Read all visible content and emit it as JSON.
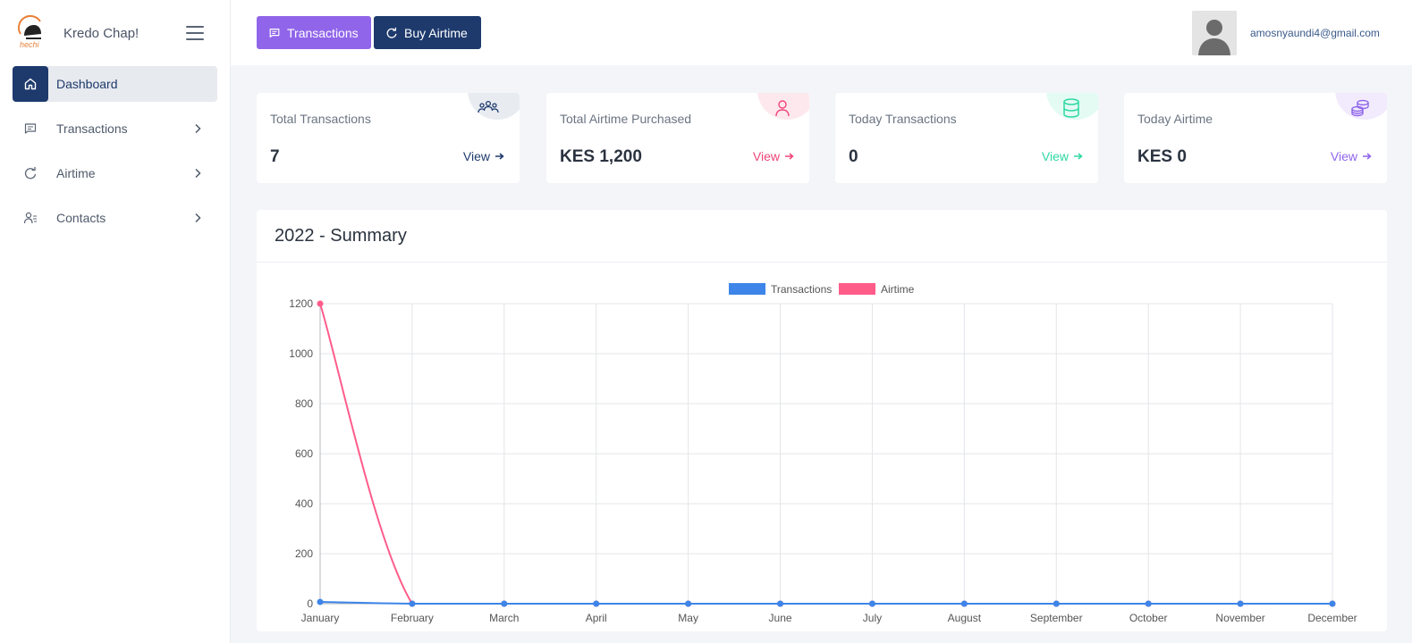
{
  "brand": {
    "name": "Kredo Chap!",
    "logo_icon": "kredo-logo"
  },
  "sidebar": {
    "items": [
      {
        "label": "Dashboard",
        "icon": "home-icon",
        "active": true,
        "chevron": false
      },
      {
        "label": "Transactions",
        "icon": "message-icon",
        "active": false,
        "chevron": true
      },
      {
        "label": "Airtime",
        "icon": "rotate-icon",
        "active": false,
        "chevron": true
      },
      {
        "label": "Contacts",
        "icon": "contacts-icon",
        "active": false,
        "chevron": true
      }
    ]
  },
  "topbar": {
    "transactions_label": "Transactions",
    "buy_airtime_label": "Buy Airtime",
    "user_email": "amosnyaundi4@gmail.com"
  },
  "colors": {
    "primary": "#1e3a6d",
    "accent_purple": "#9065ea",
    "pink": "#f0457a",
    "green": "#2ed8a3",
    "transactions_series": "#3d85e8",
    "airtime_series": "#ff5c8a"
  },
  "cards": [
    {
      "title": "Total Transactions",
      "value": "7",
      "link": "View",
      "icon": "users-icon",
      "color": "#1e3a6d",
      "badge": "#e8ecf1"
    },
    {
      "title": "Total Airtime Purchased",
      "value": "KES 1,200",
      "link": "View",
      "icon": "user-icon",
      "color": "#f0457a",
      "badge": "#fde8ee"
    },
    {
      "title": "Today Transactions",
      "value": "0",
      "link": "View",
      "icon": "database-icon",
      "color": "#2ed8a3",
      "badge": "#e3fbf3"
    },
    {
      "title": "Today Airtime",
      "value": "KES 0",
      "link": "View",
      "icon": "coins-icon",
      "color": "#9065ea",
      "badge": "#f1ebfd"
    }
  ],
  "summary": {
    "title": "2022 - Summary"
  },
  "chart_data": {
    "type": "line",
    "title": "",
    "categories": [
      "January",
      "February",
      "March",
      "April",
      "May",
      "June",
      "July",
      "August",
      "September",
      "October",
      "November",
      "December"
    ],
    "series": [
      {
        "name": "Transactions",
        "color": "#3d85e8",
        "values": [
          7,
          0,
          0,
          0,
          0,
          0,
          0,
          0,
          0,
          0,
          0,
          0
        ]
      },
      {
        "name": "Airtime",
        "color": "#ff5c8a",
        "values": [
          1200,
          0,
          0,
          0,
          0,
          0,
          0,
          0,
          0,
          0,
          0,
          0
        ]
      }
    ],
    "ylim": [
      0,
      1200
    ],
    "yticks": [
      "0",
      "200",
      "400",
      "600",
      "800",
      "1000",
      "1200"
    ],
    "grid": true,
    "legend": "top-center"
  }
}
